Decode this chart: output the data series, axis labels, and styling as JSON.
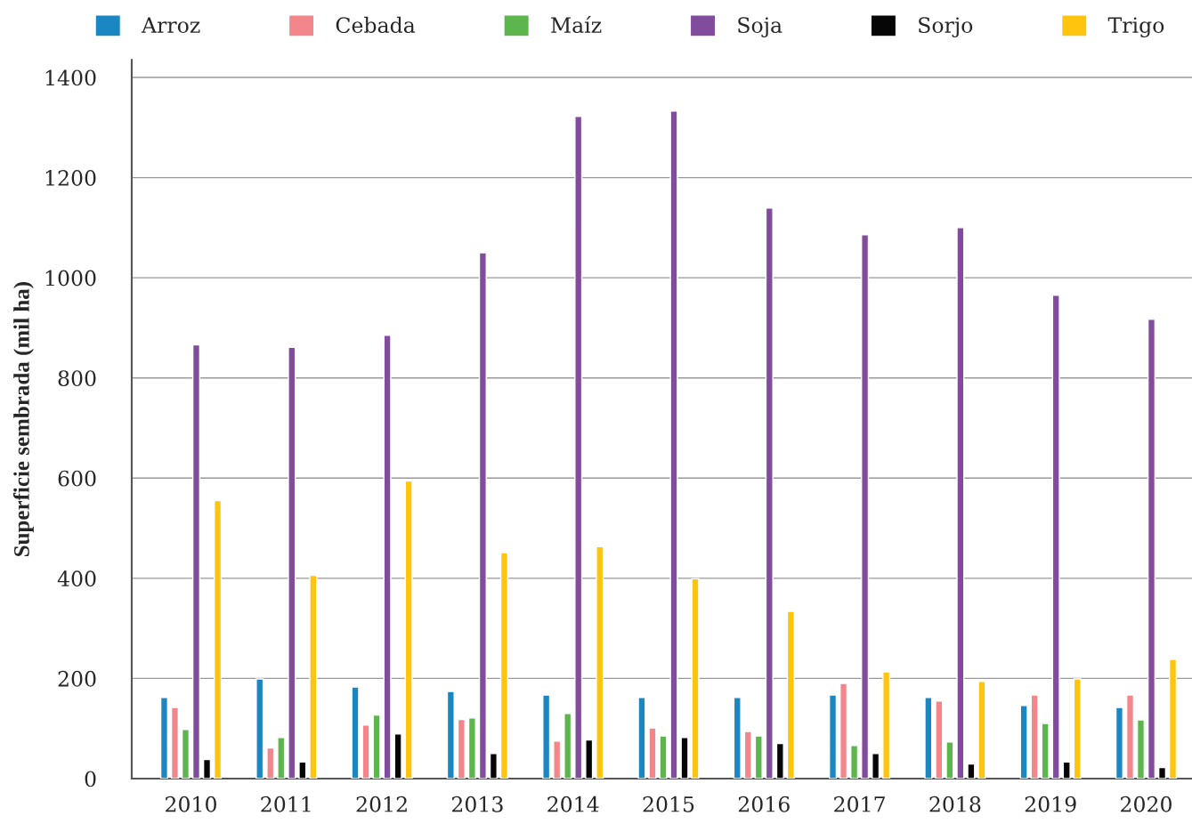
{
  "chart_data": {
    "type": "bar",
    "ylabel": "Superficie sembrada (mil ha)",
    "categories": [
      "2010",
      "2011",
      "2012",
      "2013",
      "2014",
      "2015",
      "2016",
      "2017",
      "2018",
      "2019",
      "2020"
    ],
    "series": [
      {
        "name": "Arroz",
        "color": "#1a87c2",
        "values": [
          162,
          199,
          183,
          174,
          167,
          162,
          162,
          167,
          162,
          146,
          142
        ]
      },
      {
        "name": "Cebada",
        "color": "#f2868b",
        "values": [
          142,
          61,
          107,
          118,
          75,
          101,
          94,
          190,
          155,
          167,
          167
        ]
      },
      {
        "name": "Maíz",
        "color": "#5db64d",
        "values": [
          98,
          82,
          127,
          121,
          130,
          85,
          85,
          66,
          73,
          110,
          117
        ]
      },
      {
        "name": "Soja",
        "color": "#824c9e",
        "values": [
          866,
          861,
          885,
          1050,
          1322,
          1333,
          1139,
          1086,
          1100,
          965,
          917
        ]
      },
      {
        "name": "Sorjo",
        "color": "#060606",
        "values": [
          38,
          33,
          89,
          50,
          77,
          82,
          70,
          50,
          29,
          33,
          22
        ]
      },
      {
        "name": "Trigo",
        "color": "#fec40e",
        "values": [
          555,
          406,
          594,
          451,
          463,
          399,
          334,
          213,
          194,
          199,
          238
        ]
      }
    ],
    "ylim": [
      0,
      1435
    ],
    "yticks": [
      0,
      200,
      400,
      600,
      800,
      1000,
      1200,
      1400
    ],
    "grid": "y",
    "legend": "top"
  }
}
